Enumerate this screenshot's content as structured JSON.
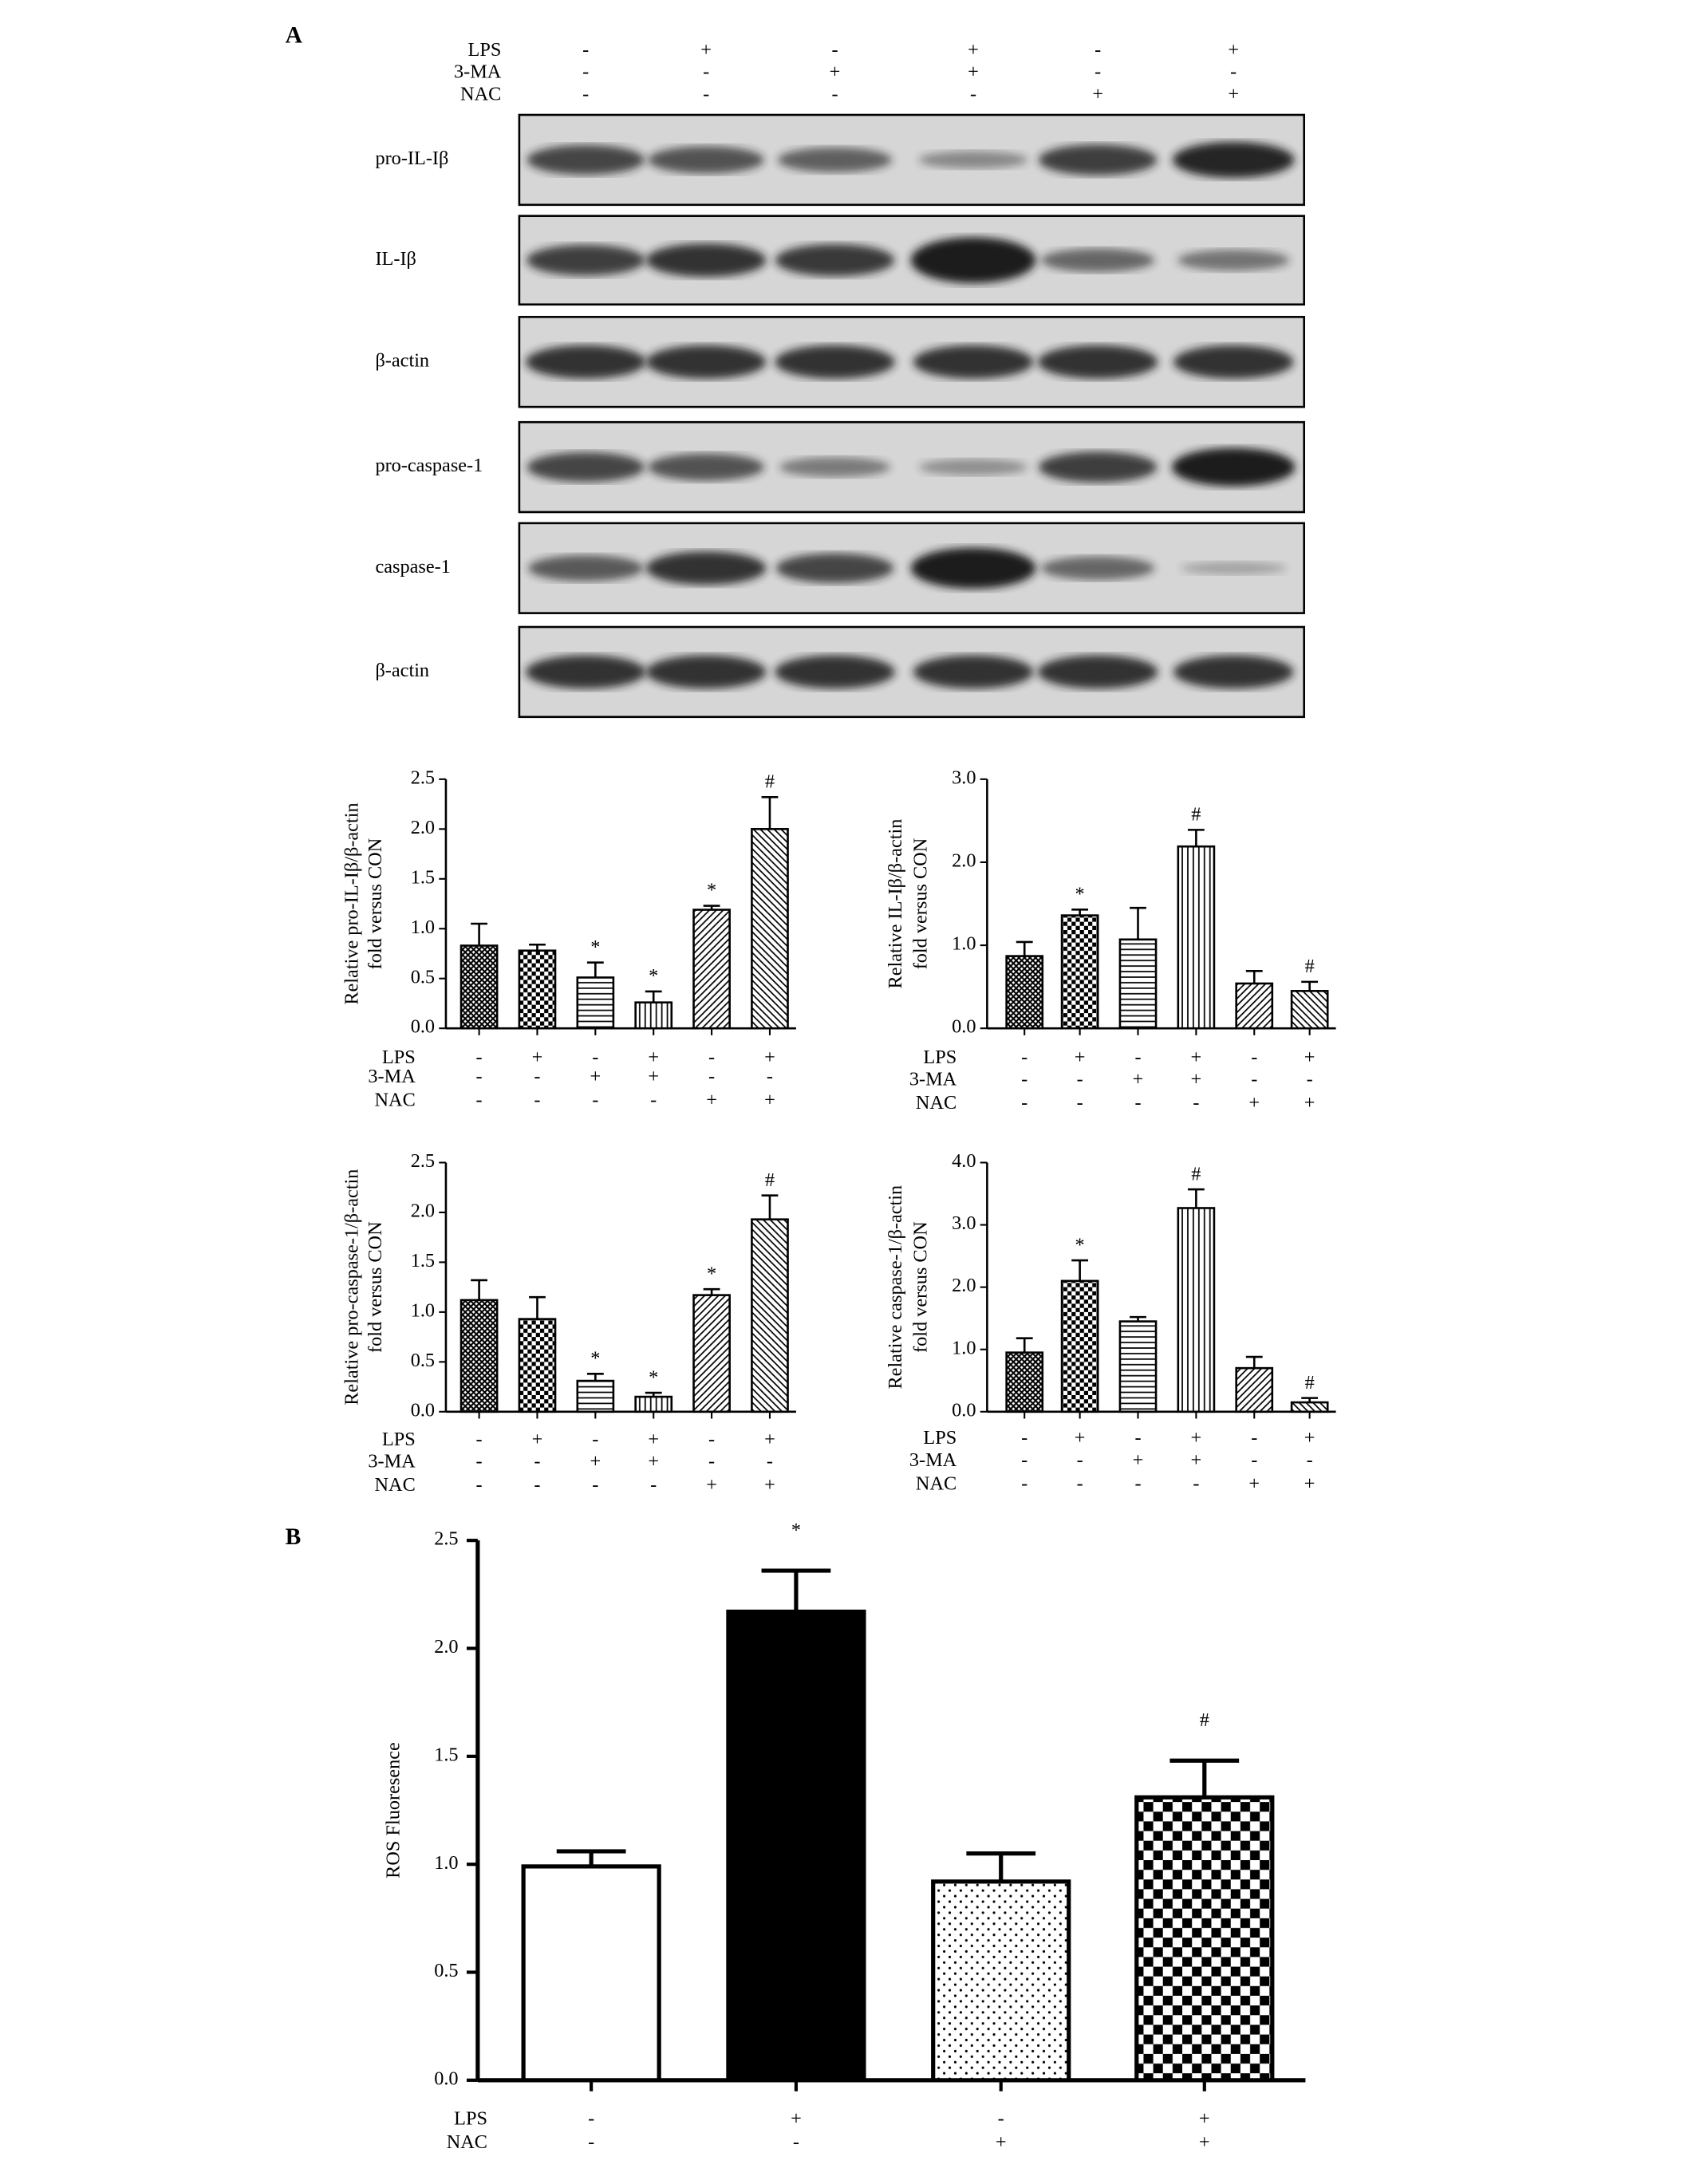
{
  "panels": {
    "a": "A",
    "b": "B"
  },
  "blot": {
    "treatments": [
      {
        "name": "LPS",
        "signs": [
          "-",
          "+",
          "-",
          "+",
          "-",
          "+"
        ]
      },
      {
        "name": "3-MA",
        "signs": [
          "-",
          "-",
          "+",
          "+",
          "-",
          "-"
        ]
      },
      {
        "name": "NAC",
        "signs": [
          "-",
          "-",
          "-",
          "-",
          "+",
          "+"
        ]
      }
    ],
    "bands": [
      "pro-IL-Iβ",
      "IL-Iβ",
      "β-actin",
      "pro-caspase-1",
      "caspase-1",
      "β-actin"
    ]
  },
  "chart_data": [
    {
      "type": "bar",
      "ylabel": [
        "Relative pro-IL-Iβ/β-actin",
        "fold versus CON"
      ],
      "values": [
        0.83,
        0.78,
        0.51,
        0.26,
        1.19,
        2.0
      ],
      "errors": [
        0.22,
        0.06,
        0.15,
        0.11,
        0.04,
        0.32
      ],
      "annotations": [
        null,
        null,
        "*",
        "*",
        "*",
        "#"
      ],
      "patterns": [
        "crosshatch",
        "checker",
        "hlines",
        "vlines",
        "diag",
        "diag2"
      ],
      "color": "#000000",
      "ylim": [
        0,
        2.5
      ],
      "yticks": [
        {
          "value": 0,
          "label": "0.0"
        },
        0.5,
        {
          "value": 1,
          "label": "1.0"
        },
        1.5,
        {
          "value": 2,
          "label": "2.0"
        },
        2.5
      ],
      "treatments": [
        {
          "name": "LPS",
          "signs": [
            "-",
            "+",
            "-",
            "+",
            "-",
            "+"
          ]
        },
        {
          "name": "3-MA",
          "signs": [
            "-",
            "-",
            "+",
            "+",
            "-",
            "-"
          ]
        },
        {
          "name": "NAC",
          "signs": [
            "-",
            "-",
            "-",
            "-",
            "+",
            "+"
          ]
        }
      ]
    },
    {
      "type": "bar",
      "ylabel": [
        "Relative IL-Iβ/β-actin",
        "fold versus CON"
      ],
      "values": [
        0.87,
        1.36,
        1.07,
        2.19,
        0.54,
        0.45
      ],
      "errors": [
        0.17,
        0.07,
        0.38,
        0.2,
        0.15,
        0.11
      ],
      "annotations": [
        null,
        "*",
        null,
        "#",
        null,
        "#"
      ],
      "patterns": [
        "crosshatch",
        "checker",
        "hlines",
        "vlines",
        "diag",
        "diag2"
      ],
      "color": "#000000",
      "ylim": [
        0,
        3
      ],
      "yticks": [
        {
          "value": 0,
          "label": "0.0"
        },
        {
          "value": 1,
          "label": "1.0"
        },
        {
          "value": 2,
          "label": "2.0"
        },
        {
          "value": 3,
          "label": "3.0"
        }
      ],
      "treatments": [
        {
          "name": "LPS",
          "signs": [
            "-",
            "+",
            "-",
            "+",
            "-",
            "+"
          ]
        },
        {
          "name": "3-MA",
          "signs": [
            "-",
            "-",
            "+",
            "+",
            "-",
            "-"
          ]
        },
        {
          "name": "NAC",
          "signs": [
            "-",
            "-",
            "-",
            "-",
            "+",
            "+"
          ]
        }
      ]
    },
    {
      "type": "bar",
      "ylabel": [
        "Relative pro-caspase-1/β-actin",
        "fold versus CON"
      ],
      "values": [
        1.12,
        0.93,
        0.31,
        0.15,
        1.17,
        1.93
      ],
      "errors": [
        0.2,
        0.22,
        0.07,
        0.04,
        0.06,
        0.24
      ],
      "annotations": [
        null,
        null,
        "*",
        "*",
        "*",
        "#"
      ],
      "patterns": [
        "crosshatch",
        "checker",
        "hlines",
        "vlines",
        "diag",
        "diag2"
      ],
      "color": "#000000",
      "ylim": [
        0,
        2.5
      ],
      "yticks": [
        {
          "value": 0,
          "label": "0.0"
        },
        0.5,
        {
          "value": 1,
          "label": "1.0"
        },
        1.5,
        {
          "value": 2,
          "label": "2.0"
        },
        2.5
      ],
      "treatments": [
        {
          "name": "LPS",
          "signs": [
            "-",
            "+",
            "-",
            "+",
            "-",
            "+"
          ]
        },
        {
          "name": "3-MA",
          "signs": [
            "-",
            "-",
            "+",
            "+",
            "-",
            "-"
          ]
        },
        {
          "name": "NAC",
          "signs": [
            "-",
            "-",
            "-",
            "-",
            "+",
            "+"
          ]
        }
      ]
    },
    {
      "type": "bar",
      "ylabel": [
        "Relative caspase-1/β-actin",
        "fold versus CON"
      ],
      "values": [
        0.95,
        2.1,
        1.45,
        3.27,
        0.7,
        0.15
      ],
      "errors": [
        0.23,
        0.33,
        0.07,
        0.3,
        0.18,
        0.07
      ],
      "annotations": [
        null,
        "*",
        null,
        "#",
        null,
        "#"
      ],
      "patterns": [
        "crosshatch",
        "checker",
        "hlines",
        "vlines",
        "diag",
        "diag2"
      ],
      "color": "#000000",
      "ylim": [
        0,
        4
      ],
      "yticks": [
        {
          "value": 0,
          "label": "0.0"
        },
        {
          "value": 1,
          "label": "1.0"
        },
        {
          "value": 2,
          "label": "2.0"
        },
        {
          "value": 3,
          "label": "3.0"
        },
        {
          "value": 4,
          "label": "4.0"
        }
      ],
      "treatments": [
        {
          "name": "LPS",
          "signs": [
            "-",
            "+",
            "-",
            "+",
            "-",
            "+"
          ]
        },
        {
          "name": "3-MA",
          "signs": [
            "-",
            "-",
            "+",
            "+",
            "-",
            "-"
          ]
        },
        {
          "name": "NAC",
          "signs": [
            "-",
            "-",
            "-",
            "-",
            "+",
            "+"
          ]
        }
      ]
    },
    {
      "type": "bar",
      "ylabel": [
        "ROS Fluoresence"
      ],
      "values": [
        0.99,
        2.17,
        0.92,
        1.31
      ],
      "errors": [
        0.07,
        0.19,
        0.13,
        0.17
      ],
      "annotations": [
        null,
        "*",
        null,
        "#"
      ],
      "patterns": [
        "blank",
        "solid",
        "dots",
        "bigchecker"
      ],
      "color": "#000000",
      "ylim": [
        0,
        2.5
      ],
      "yticks": [
        {
          "value": 0,
          "label": "0.0"
        },
        0.5,
        {
          "value": 1,
          "label": "1.0"
        },
        1.5,
        {
          "value": 2,
          "label": "2.0"
        },
        2.5
      ],
      "treatments": [
        {
          "name": "LPS",
          "signs": [
            "-",
            "+",
            "-",
            "+"
          ]
        },
        {
          "name": "NAC",
          "signs": [
            "-",
            "-",
            "+",
            "+"
          ]
        }
      ]
    }
  ]
}
